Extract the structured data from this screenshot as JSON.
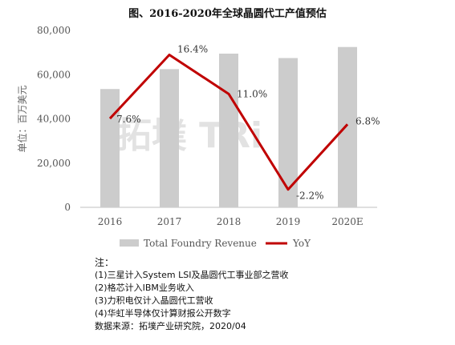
{
  "chart_data": {
    "type": "bar",
    "title": "图、2016-2020年全球晶圆代工产值预估",
    "ylabel": "单位：百万美元",
    "categories": [
      "2016",
      "2017",
      "2018",
      "2019",
      "2020E"
    ],
    "ylim": [
      0,
      80000
    ],
    "yticks": [
      0,
      20000,
      40000,
      60000,
      80000
    ],
    "ytick_labels": [
      "0",
      "20,000",
      "40,000",
      "60,000",
      "80,000"
    ],
    "grid": false,
    "legend_position": "bottom",
    "series": [
      {
        "name": "Total Foundry Revenue",
        "kind": "bar",
        "color": "#cccccc",
        "values": [
          53500,
          62500,
          69500,
          67500,
          72500
        ]
      },
      {
        "name": "YoY",
        "kind": "line",
        "axis": "secondary",
        "color": "#c00000",
        "values": [
          7.6,
          16.4,
          11.0,
          -2.2,
          6.8
        ],
        "labels": [
          "7.6%",
          "16.4%",
          "11.0%",
          "-2.2%",
          "6.8%"
        ]
      }
    ],
    "watermark": "拓墣 TRi"
  },
  "notes": {
    "heading": "注：",
    "items": [
      "(1)三星计入System LSI及晶圆代工事业部之营收",
      "(2)格芯计入IBM业务收入",
      "(3)力积电仅计入晶圆代工营收",
      "(4)华虹半导体仅计算财报公开数字"
    ],
    "source": "数据来源：拓墣产业研究院，2020/04"
  }
}
